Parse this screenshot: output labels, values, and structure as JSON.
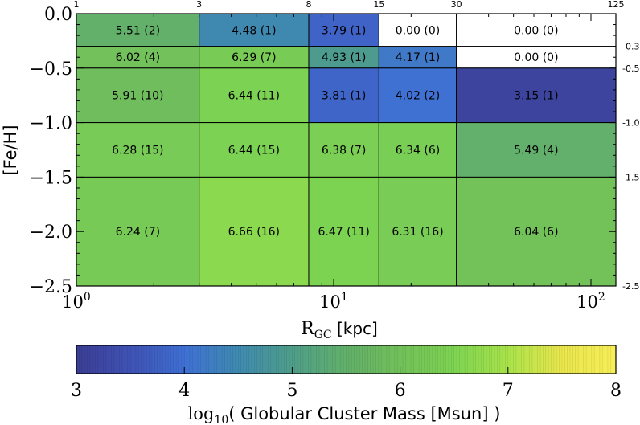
{
  "chart_data": [
    {
      "type": "heatmap",
      "title": "",
      "xlabel_main": "R",
      "xlabel_sub": "GC",
      "xlabel_rest": " [kpc]",
      "ylabel": "[Fe/H]",
      "x_scale": "log",
      "xlim": [
        1,
        125
      ],
      "ylim": [
        -2.5,
        0.0
      ],
      "x_edges": [
        1,
        3,
        8,
        15,
        30,
        125
      ],
      "x_edge_labels": [
        "1",
        "3",
        "8",
        "15",
        "30",
        "125"
      ],
      "y_edges": [
        0.0,
        -0.3,
        -0.5,
        -1.0,
        -1.5,
        -2.5
      ],
      "y_edge_labels": [
        "-0.3",
        "-0.5",
        "-1.0",
        "-1.5",
        "-2.5"
      ],
      "x_ticks": [
        {
          "value": 1,
          "base": "10",
          "exp": "0"
        },
        {
          "value": 10,
          "base": "10",
          "exp": "1"
        },
        {
          "value": 100,
          "base": "10",
          "exp": "2"
        }
      ],
      "y_ticks": [
        {
          "value": 0.0,
          "label": "0.0"
        },
        {
          "value": -0.5,
          "label": "−0.5"
        },
        {
          "value": -1.0,
          "label": "−1.0"
        },
        {
          "value": -1.5,
          "label": "−1.5"
        },
        {
          "value": -2.0,
          "label": "−2.0"
        },
        {
          "value": -2.5,
          "label": "−2.5"
        }
      ],
      "cells": [
        [
          {
            "value": 5.51,
            "count": 2,
            "label": "5.51 (2)"
          },
          {
            "value": 4.48,
            "count": 1,
            "label": "4.48 (1)"
          },
          {
            "value": 3.79,
            "count": 1,
            "label": "3.79 (1)"
          },
          {
            "value": 0.0,
            "count": 0,
            "label": "0.00 (0)"
          },
          {
            "value": 0.0,
            "count": 0,
            "label": "0.00 (0)"
          }
        ],
        [
          {
            "value": 6.02,
            "count": 4,
            "label": "6.02 (4)"
          },
          {
            "value": 6.29,
            "count": 7,
            "label": "6.29 (7)"
          },
          {
            "value": 4.93,
            "count": 1,
            "label": "4.93 (1)"
          },
          {
            "value": 4.17,
            "count": 1,
            "label": "4.17 (1)"
          },
          {
            "value": 0.0,
            "count": 0,
            "label": "0.00 (0)"
          }
        ],
        [
          {
            "value": 5.91,
            "count": 10,
            "label": "5.91 (10)"
          },
          {
            "value": 6.44,
            "count": 11,
            "label": "6.44 (11)"
          },
          {
            "value": 3.81,
            "count": 1,
            "label": "3.81 (1)"
          },
          {
            "value": 4.02,
            "count": 2,
            "label": "4.02 (2)"
          },
          {
            "value": 3.15,
            "count": 1,
            "label": "3.15 (1)"
          }
        ],
        [
          {
            "value": 6.28,
            "count": 15,
            "label": "6.28 (15)"
          },
          {
            "value": 6.44,
            "count": 15,
            "label": "6.44 (15)"
          },
          {
            "value": 6.38,
            "count": 7,
            "label": "6.38 (7)"
          },
          {
            "value": 6.34,
            "count": 6,
            "label": "6.34 (6)"
          },
          {
            "value": 5.49,
            "count": 4,
            "label": "5.49 (4)"
          }
        ],
        [
          {
            "value": 6.24,
            "count": 7,
            "label": "6.24 (7)"
          },
          {
            "value": 6.66,
            "count": 16,
            "label": "6.66 (16)"
          },
          {
            "value": 6.47,
            "count": 11,
            "label": "6.47 (11)"
          },
          {
            "value": 6.31,
            "count": 16,
            "label": "6.31 (16)"
          },
          {
            "value": 6.04,
            "count": 6,
            "label": "6.04 (6)"
          }
        ]
      ]
    },
    {
      "type": "colorbar",
      "range": [
        3,
        8
      ],
      "ticks": [
        "3",
        "4",
        "5",
        "6",
        "7",
        "8"
      ],
      "label_main": "log",
      "label_sub": "10",
      "label_rest": "( Globular Cluster Mass [Msun] )",
      "colormap_stops": [
        "#3b3e94",
        "#3f52b4",
        "#3f70d4",
        "#3f8ab0",
        "#4f9e8a",
        "#62b06a",
        "#72c05a",
        "#7dd452",
        "#a9e34a",
        "#eae74d",
        "#f7ee58"
      ]
    }
  ]
}
